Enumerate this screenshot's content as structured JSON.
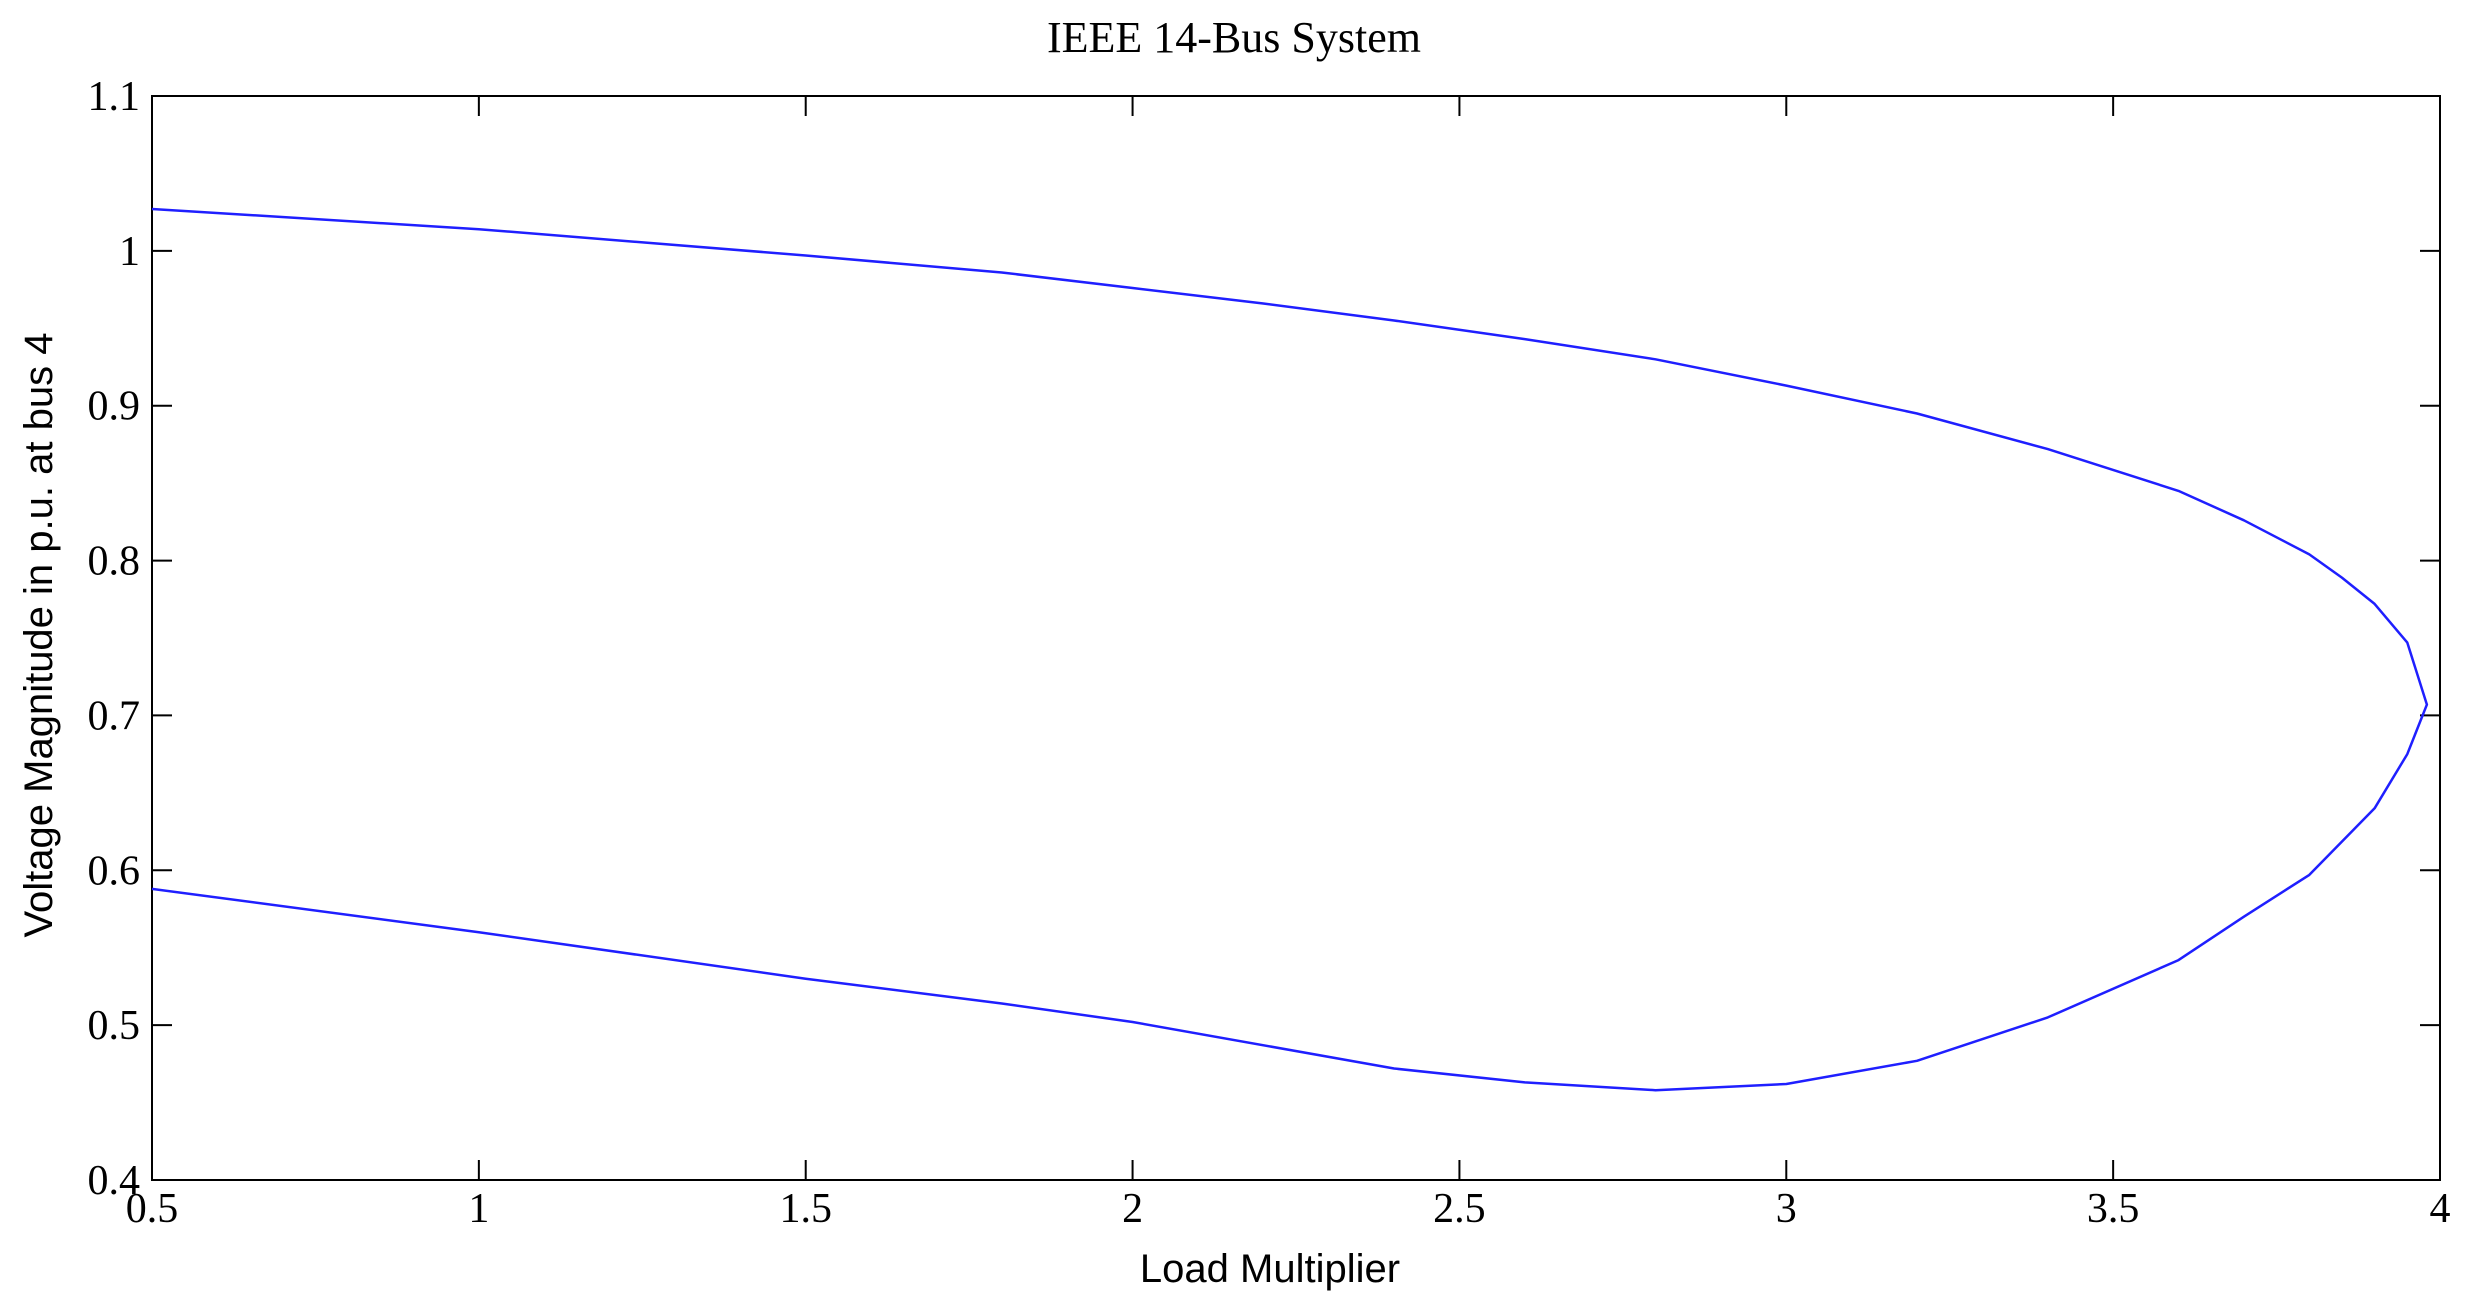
{
  "chart_data": {
    "type": "line",
    "title": "IEEE 14-Bus System",
    "xlabel": "Load Multiplier",
    "ylabel": "Voltage Magnitude in p.u. at bus 4",
    "xlim": [
      0.5,
      4
    ],
    "ylim": [
      0.4,
      1.1
    ],
    "xticks": [
      "0.5",
      "1",
      "1.5",
      "2",
      "2.5",
      "3",
      "3.5",
      "4"
    ],
    "yticks": [
      "0.4",
      "0.5",
      "0.6",
      "0.7",
      "0.8",
      "0.9",
      "1",
      "1.1"
    ],
    "grid": false,
    "series": [
      {
        "color": "#1f1fff",
        "x": [
          0.5,
          1.0,
          1.5,
          1.8,
          2.0,
          2.2,
          2.4,
          2.6,
          2.8,
          3.0,
          3.2,
          3.4,
          3.6,
          3.7,
          3.8,
          3.85,
          3.9,
          3.95,
          3.98,
          3.95,
          3.9,
          3.8,
          3.7,
          3.6,
          3.4,
          3.2,
          3.0,
          2.8,
          2.6,
          2.4,
          2.0,
          1.8,
          1.5,
          1.0,
          0.5
        ],
        "y": [
          1.027,
          1.014,
          0.997,
          0.986,
          0.976,
          0.966,
          0.955,
          0.943,
          0.93,
          0.913,
          0.895,
          0.872,
          0.845,
          0.826,
          0.804,
          0.789,
          0.772,
          0.747,
          0.707,
          0.675,
          0.64,
          0.597,
          0.57,
          0.542,
          0.505,
          0.477,
          0.462,
          0.458,
          0.463,
          0.472,
          0.502,
          0.514,
          0.53,
          0.56,
          0.588
        ]
      }
    ]
  }
}
